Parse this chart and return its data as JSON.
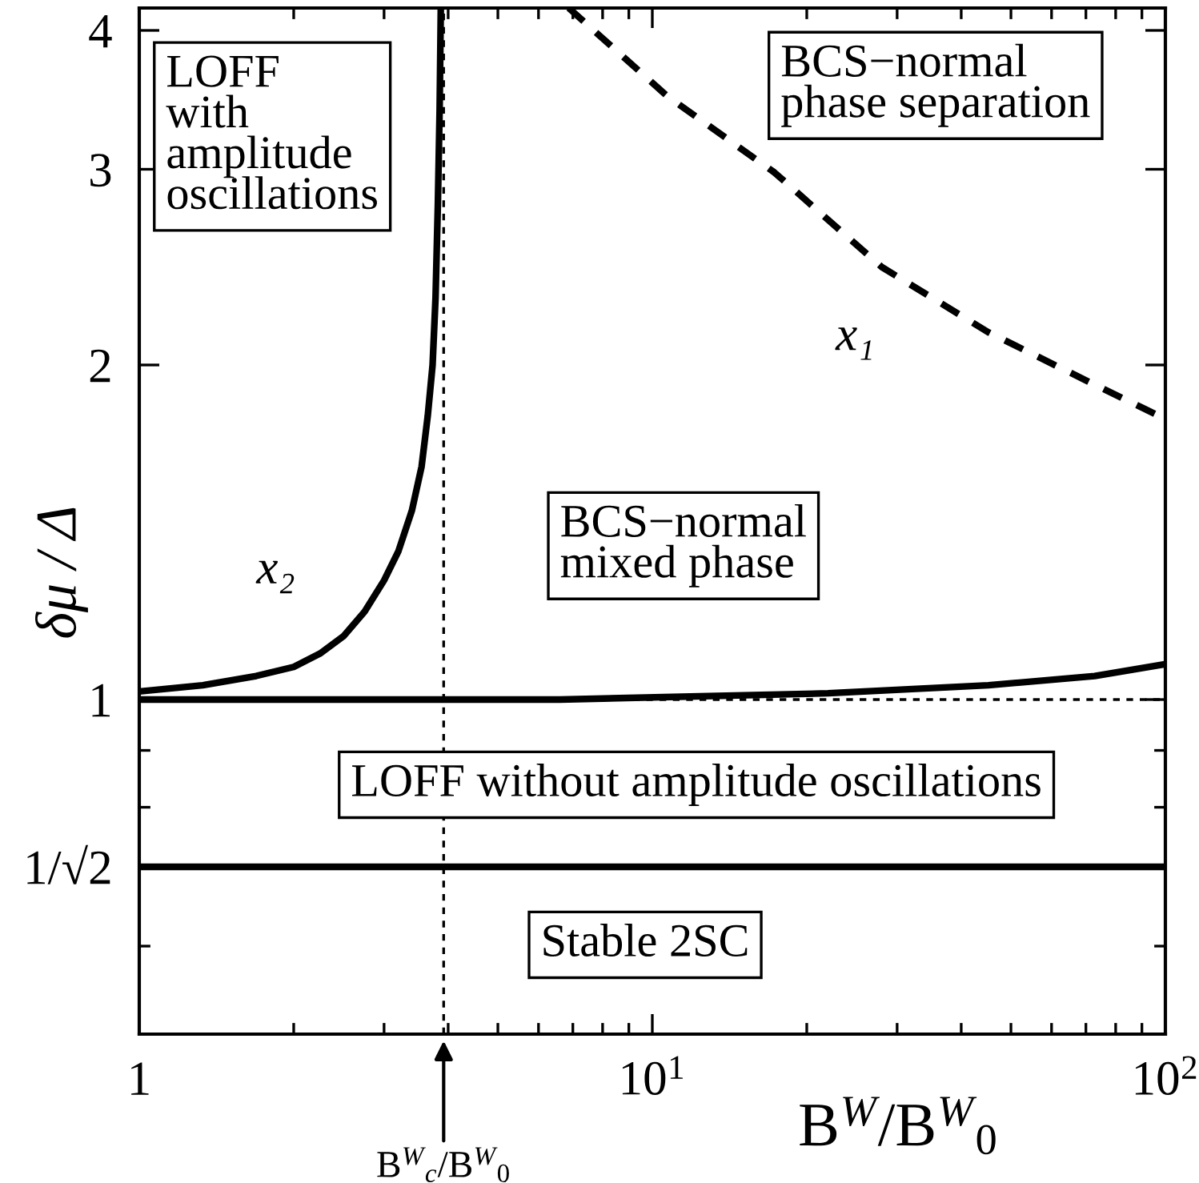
{
  "chart_data": {
    "type": "line",
    "xlabel": "B$^{W}$/B$^{W}$$_{0}$",
    "ylabel": "δμ / Δ",
    "log": "xy",
    "xlim": [
      1,
      100
    ],
    "ylim": [
      0.5,
      4.19
    ],
    "xticks": [
      1,
      {
        "value": 2,
        "label": null
      },
      {
        "value": 3,
        "label": null
      },
      {
        "value": 4,
        "label": null
      },
      {
        "value": 5,
        "label": null
      },
      {
        "value": 6,
        "label": null
      },
      {
        "value": 7,
        "label": null
      },
      {
        "value": 8,
        "label": null
      },
      {
        "value": 9,
        "label": null
      },
      {
        "value": 10,
        "label": "10$^{1}$"
      },
      {
        "value": 20,
        "label": null
      },
      {
        "value": 30,
        "label": null
      },
      {
        "value": 40,
        "label": null
      },
      {
        "value": 50,
        "label": null
      },
      {
        "value": 60,
        "label": null
      },
      {
        "value": 70,
        "label": null
      },
      {
        "value": 80,
        "label": null
      },
      {
        "value": 90,
        "label": null
      },
      {
        "value": 100,
        "label": "10$^{2}$"
      }
    ],
    "yticks": [
      {
        "value": 0.6,
        "label": null
      },
      {
        "value": 0.7071,
        "label": "1/√2"
      },
      {
        "value": 0.8,
        "label": null
      },
      {
        "value": 0.9,
        "label": null
      },
      1,
      2,
      3,
      4
    ],
    "series": [
      {
        "name": "x₂",
        "color": "#000000",
        "line_style": "solid",
        "x": [
          1,
          1.33,
          1.69,
          2.0,
          2.25,
          2.5,
          2.75,
          3.0,
          3.2,
          3.4,
          3.55,
          3.65,
          3.73,
          3.78,
          3.82,
          3.85,
          3.87
        ],
        "values": [
          1.017,
          1.03,
          1.05,
          1.07,
          1.1,
          1.14,
          1.2,
          1.28,
          1.36,
          1.48,
          1.62,
          1.8,
          2.0,
          2.3,
          2.8,
          3.4,
          4.19
        ]
      },
      {
        "color": "#000000",
        "line_style": "solid",
        "x": [
          1,
          3.9,
          6.6,
          22,
          45.2,
          72.8,
          100
        ],
        "values": [
          1.0,
          1.0,
          1.0,
          1.013,
          1.03,
          1.05,
          1.076
        ]
      },
      {
        "name": "x₁",
        "color": "#000000",
        "line_style": "dashed",
        "x": [
          6.87,
          10.7,
          17.3,
          28.0,
          45.2,
          72.8,
          97.2,
          100
        ],
        "values": [
          4.19,
          3.49,
          2.98,
          2.45,
          2.14,
          1.92,
          1.8,
          1.78
        ]
      }
    ],
    "ref_lines": [
      {
        "axis": "y",
        "value": 1,
        "color": "#000000",
        "line_style": "dashed"
      },
      {
        "axis": "y",
        "value": 0.7071,
        "color": "#000000",
        "line_style": "solid"
      },
      {
        "axis": "x",
        "value": 3.92,
        "color": "#000000",
        "line_style": "dashed",
        "label": "B$^{W}$$_{c}$/B$^{W}$$_{0}$"
      }
    ],
    "annotations": [
      "LOFF\nwith\namplitude\noscillations",
      "BCS−normal\nphase separation",
      "BCS−normal\nmixed phase",
      "LOFF without amplitude oscillations",
      "Stable 2SC"
    ]
  }
}
